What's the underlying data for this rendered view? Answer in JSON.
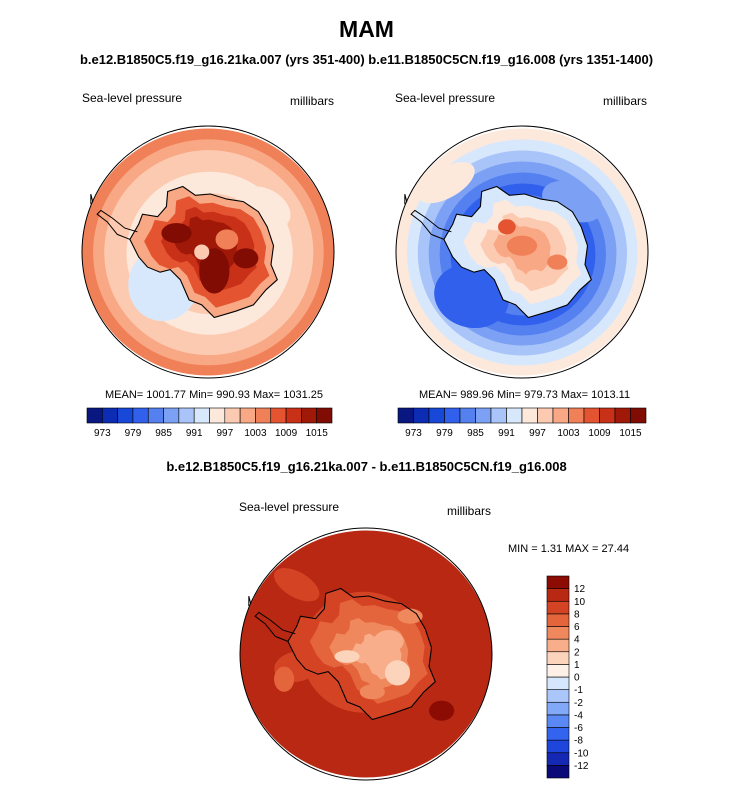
{
  "title": "MAM",
  "runs_line": "b.e12.B1850C5.f19_g16.21ka.007 (yrs 351-400) b.e11.B1850C5CN.f19_g16.008 (yrs 1351-1400)",
  "diff_title": "b.e12.B1850C5.f19_g16.21ka.007 - b.e11.B1850C5CN.f19_g16.008",
  "panels": {
    "left": {
      "variable": "Sea-level pressure",
      "units": "millibars",
      "stats": "MEAN= 1001.77  Min= 990.93  Max= 1031.25"
    },
    "right": {
      "variable": "Sea-level pressure",
      "units": "millibars",
      "stats": "MEAN= 989.96  Min= 979.73  Max= 1013.11"
    },
    "diff": {
      "variable": "Sea-level pressure",
      "units": "millibars",
      "stats": "MIN =   1.31 MAX =  27.44"
    }
  },
  "chart_data": [
    {
      "type": "heatmap",
      "name": "left-polar-map",
      "title": "Sea-level pressure",
      "units": "millibars",
      "projection": "south-polar stereographic",
      "mean": 1001.77,
      "min": 990.93,
      "max": 1031.25,
      "colorbar": {
        "levels": [
          973,
          976,
          979,
          982,
          985,
          988,
          991,
          994,
          997,
          1000,
          1003,
          1006,
          1009,
          1012,
          1015
        ],
        "tick_labels": [
          "973",
          "979",
          "985",
          "991",
          "997",
          "1003",
          "1009",
          "1015"
        ],
        "colors": [
          "#081880",
          "#0c2cb4",
          "#1848d8",
          "#3060ec",
          "#5480f0",
          "#7ca0f4",
          "#a8c4f8",
          "#d8e8fc",
          "#fde8dc",
          "#fccab0",
          "#f8a884",
          "#f08058",
          "#e45430",
          "#c83018",
          "#a01808",
          "#800c04"
        ]
      }
    },
    {
      "type": "heatmap",
      "name": "right-polar-map",
      "title": "Sea-level pressure",
      "units": "millibars",
      "projection": "south-polar stereographic",
      "mean": 989.96,
      "min": 979.73,
      "max": 1013.11,
      "colorbar": {
        "levels": [
          973,
          976,
          979,
          982,
          985,
          988,
          991,
          994,
          997,
          1000,
          1003,
          1006,
          1009,
          1012,
          1015
        ],
        "tick_labels": [
          "973",
          "979",
          "985",
          "991",
          "997",
          "1003",
          "1009",
          "1015"
        ],
        "colors": [
          "#081880",
          "#0c2cb4",
          "#1848d8",
          "#3060ec",
          "#5480f0",
          "#7ca0f4",
          "#a8c4f8",
          "#d8e8fc",
          "#fde8dc",
          "#fccab0",
          "#f8a884",
          "#f08058",
          "#e45430",
          "#c83018",
          "#a01808",
          "#800c04"
        ]
      }
    },
    {
      "type": "heatmap",
      "name": "difference-polar-map",
      "title": "Sea-level pressure",
      "units": "millibars",
      "projection": "south-polar stereographic",
      "min": 1.31,
      "max": 27.44,
      "colorbar": {
        "levels": [
          -12,
          -10,
          -8,
          -6,
          -4,
          -2,
          -1,
          0,
          1,
          2,
          4,
          6,
          8,
          10,
          12
        ],
        "tick_labels": [
          "-12",
          "-10",
          "-8",
          "-6",
          "-4",
          "-2",
          "-1",
          "0",
          "1",
          "2",
          "4",
          "6",
          "8",
          "10",
          "12"
        ],
        "colors": [
          "#0a0a78",
          "#1428b4",
          "#1e46dc",
          "#3264f0",
          "#5a88f4",
          "#82a8f8",
          "#aac6fa",
          "#d6e6fc",
          "#fdf0e6",
          "#fcd4bc",
          "#f8ae8a",
          "#f0885e",
          "#e4643c",
          "#d44424",
          "#b82812",
          "#8c0c04"
        ]
      }
    }
  ]
}
